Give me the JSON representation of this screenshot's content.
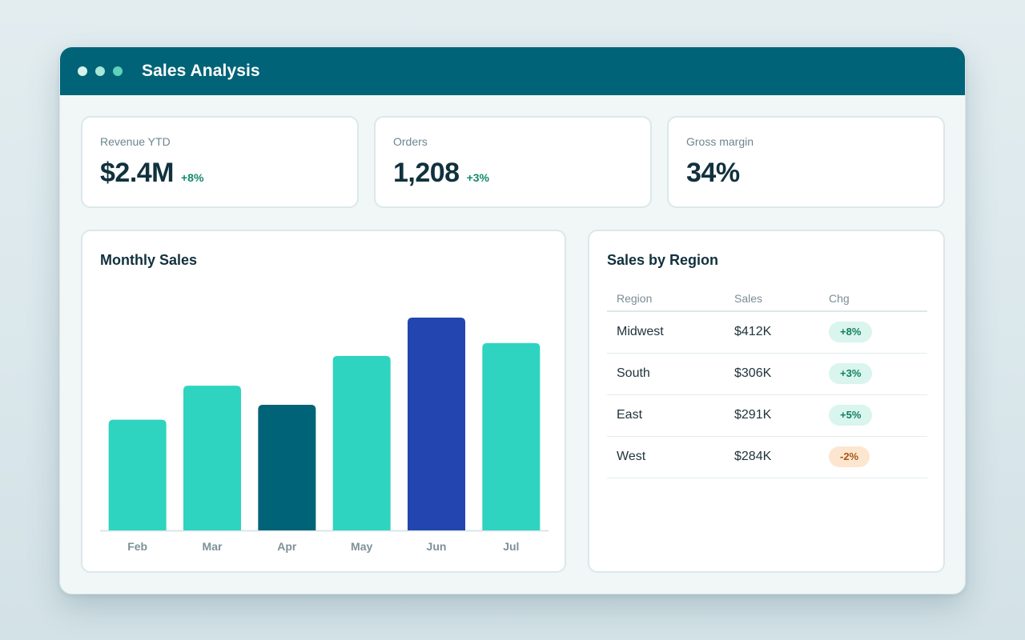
{
  "window": {
    "title": "Sales Analysis",
    "dots": [
      "#d7f3ec",
      "#a6e7d8",
      "#5fd2bc"
    ]
  },
  "kpis": [
    {
      "label": "Revenue YTD",
      "value": "$2.4M",
      "delta": "+8%"
    },
    {
      "label": "Orders",
      "value": "1,208",
      "delta": "+3%"
    },
    {
      "label": "Gross margin",
      "value": "34%",
      "delta": ""
    }
  ],
  "monthly": {
    "title": "Monthly Sales"
  },
  "chart_data": {
    "type": "bar",
    "title": "Monthly Sales",
    "categories": [
      "Feb",
      "Mar",
      "Apr",
      "May",
      "Jun",
      "Jul"
    ],
    "values": [
      52,
      68,
      59,
      82,
      100,
      88
    ],
    "ylim": [
      0,
      100
    ],
    "grid": false,
    "colors": [
      "#2ed4bf",
      "#2ed4bf",
      "#006377",
      "#2ed4bf",
      "#2245b0",
      "#2ed4bf"
    ]
  },
  "region": {
    "title": "Sales by Region",
    "headers": [
      "Region",
      "Sales",
      "Chg"
    ],
    "rows": [
      {
        "region": "Midwest",
        "sales": "$412K",
        "chg": "+8%",
        "trend": "up"
      },
      {
        "region": "South",
        "sales": "$306K",
        "chg": "+3%",
        "trend": "up"
      },
      {
        "region": "East",
        "sales": "$291K",
        "chg": "+5%",
        "trend": "up"
      },
      {
        "region": "West",
        "sales": "$284K",
        "chg": "-2%",
        "trend": "down"
      }
    ]
  },
  "colors": {
    "titlebar": "#006377",
    "accent": "#2ed4bf",
    "highlight": "#2245b0",
    "positive": "#138a6c",
    "negative": "#a8561b"
  }
}
